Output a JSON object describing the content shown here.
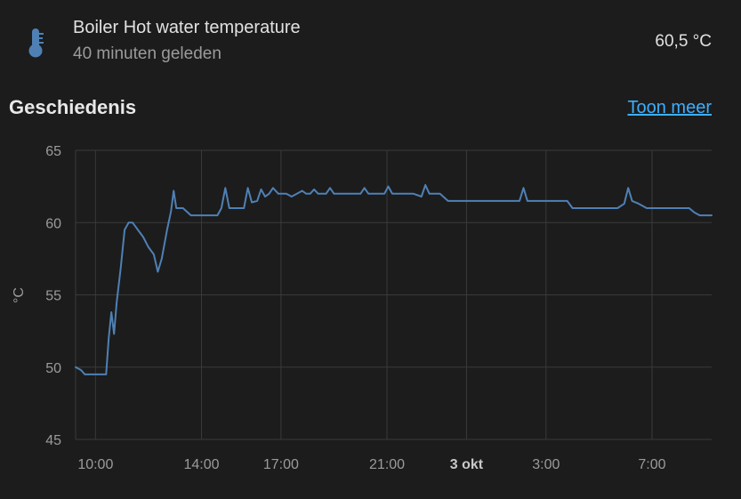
{
  "entity": {
    "icon": "thermometer-icon",
    "name": "Boiler Hot water temperature",
    "last_changed": "40 minuten geleden",
    "state": "60,5 °C"
  },
  "history": {
    "title": "Geschiedenis",
    "show_more_label": "Toon meer"
  },
  "colors": {
    "accent": "#3daeff",
    "line": "#4f80b5",
    "icon": "#4f80b5",
    "grid": "#3a3a3a",
    "background": "#1c1c1c"
  },
  "chart_data": {
    "type": "line",
    "title": "",
    "xlabel": "",
    "ylabel": "°C",
    "ylim": [
      45,
      65
    ],
    "yticks": [
      45,
      50,
      55,
      60,
      65
    ],
    "x_unit": "hours since 00:00 on the first day (24 = 3 okt 00:00)",
    "xlim": [
      9.25,
      33.25
    ],
    "xticks": [
      {
        "x": 10,
        "label": "10:00",
        "bold": false
      },
      {
        "x": 14,
        "label": "14:00",
        "bold": false
      },
      {
        "x": 17,
        "label": "17:00",
        "bold": false
      },
      {
        "x": 21,
        "label": "21:00",
        "bold": false
      },
      {
        "x": 24,
        "label": "3 okt",
        "bold": true
      },
      {
        "x": 27,
        "label": "3:00",
        "bold": false
      },
      {
        "x": 31,
        "label": "7:00",
        "bold": false
      }
    ],
    "series": [
      {
        "name": "",
        "points": [
          [
            9.25,
            50.0
          ],
          [
            9.45,
            49.8
          ],
          [
            9.6,
            49.5
          ],
          [
            10.1,
            49.5
          ],
          [
            10.4,
            49.5
          ],
          [
            10.5,
            52.0
          ],
          [
            10.6,
            53.8
          ],
          [
            10.7,
            52.3
          ],
          [
            10.8,
            54.5
          ],
          [
            10.95,
            56.8
          ],
          [
            11.1,
            59.5
          ],
          [
            11.25,
            60.0
          ],
          [
            11.4,
            60.0
          ],
          [
            11.6,
            59.5
          ],
          [
            11.8,
            59.0
          ],
          [
            12.0,
            58.3
          ],
          [
            12.2,
            57.8
          ],
          [
            12.35,
            56.6
          ],
          [
            12.5,
            57.5
          ],
          [
            12.7,
            59.5
          ],
          [
            12.85,
            60.8
          ],
          [
            12.95,
            62.2
          ],
          [
            13.05,
            61.0
          ],
          [
            13.3,
            61.0
          ],
          [
            13.6,
            60.5
          ],
          [
            14.0,
            60.5
          ],
          [
            14.6,
            60.5
          ],
          [
            14.75,
            61.0
          ],
          [
            14.9,
            62.4
          ],
          [
            15.05,
            61.0
          ],
          [
            15.6,
            61.0
          ],
          [
            15.75,
            62.4
          ],
          [
            15.9,
            61.4
          ],
          [
            16.1,
            61.5
          ],
          [
            16.25,
            62.3
          ],
          [
            16.4,
            61.8
          ],
          [
            16.55,
            62.0
          ],
          [
            16.7,
            62.4
          ],
          [
            16.9,
            62.0
          ],
          [
            17.2,
            62.0
          ],
          [
            17.4,
            61.8
          ],
          [
            17.6,
            62.0
          ],
          [
            17.8,
            62.2
          ],
          [
            17.95,
            62.0
          ],
          [
            18.1,
            62.0
          ],
          [
            18.25,
            62.3
          ],
          [
            18.4,
            62.0
          ],
          [
            18.7,
            62.0
          ],
          [
            18.85,
            62.4
          ],
          [
            19.0,
            62.0
          ],
          [
            20.0,
            62.0
          ],
          [
            20.15,
            62.4
          ],
          [
            20.3,
            62.0
          ],
          [
            20.9,
            62.0
          ],
          [
            21.05,
            62.5
          ],
          [
            21.2,
            62.0
          ],
          [
            22.0,
            62.0
          ],
          [
            22.3,
            61.8
          ],
          [
            22.45,
            62.6
          ],
          [
            22.6,
            62.0
          ],
          [
            23.0,
            62.0
          ],
          [
            23.3,
            61.5
          ],
          [
            26.0,
            61.5
          ],
          [
            26.15,
            62.4
          ],
          [
            26.3,
            61.5
          ],
          [
            27.8,
            61.5
          ],
          [
            28.0,
            61.0
          ],
          [
            29.7,
            61.0
          ],
          [
            29.95,
            61.3
          ],
          [
            30.1,
            62.4
          ],
          [
            30.25,
            61.5
          ],
          [
            30.5,
            61.3
          ],
          [
            30.8,
            61.0
          ],
          [
            32.0,
            61.0
          ],
          [
            32.4,
            61.0
          ],
          [
            32.6,
            60.7
          ],
          [
            32.8,
            60.5
          ],
          [
            33.25,
            60.5
          ]
        ]
      }
    ]
  }
}
